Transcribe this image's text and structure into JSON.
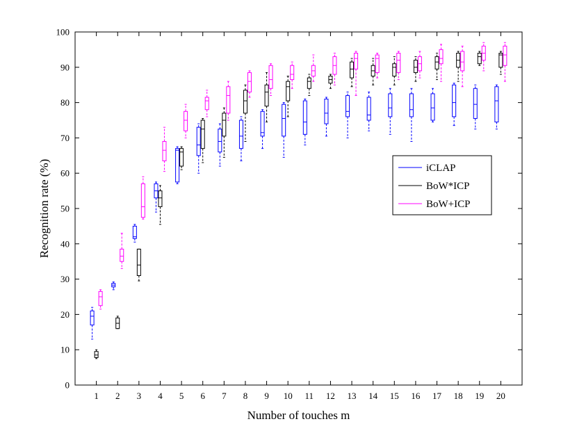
{
  "chart_data": {
    "type": "boxplot",
    "xlabel": "Number of touches m",
    "ylabel": "Recognition rate (%)",
    "ylim": [
      0,
      100
    ],
    "yticks": [
      0,
      10,
      20,
      30,
      40,
      50,
      60,
      70,
      80,
      90,
      100
    ],
    "categories": [
      "1",
      "2",
      "3",
      "4",
      "5",
      "6",
      "7",
      "8",
      "9",
      "10",
      "11",
      "12",
      "13",
      "14",
      "15",
      "16",
      "17",
      "18",
      "19",
      "20"
    ],
    "legend_position": "right-center",
    "grid": false,
    "series": [
      {
        "name": "iCLAP",
        "color": "#0000ff",
        "boxes": [
          {
            "min": 13,
            "q1": 17,
            "median": 19.5,
            "q3": 21,
            "max": 22
          },
          {
            "min": 27,
            "q1": 27.8,
            "median": 28.3,
            "q3": 28.8,
            "max": 29.2
          },
          {
            "min": 40.5,
            "q1": 41.5,
            "median": 42,
            "q3": 45,
            "max": 45.5
          },
          {
            "min": 49,
            "q1": 53,
            "median": 55,
            "q3": 57,
            "max": 57.5
          },
          {
            "min": 57,
            "q1": 57.5,
            "median": 66.5,
            "q3": 67,
            "max": 67.5
          },
          {
            "min": 60,
            "q1": 65,
            "median": 68,
            "q3": 73,
            "max": 74
          },
          {
            "min": 62,
            "q1": 66,
            "median": 69,
            "q3": 72.5,
            "max": 74
          },
          {
            "min": 63.5,
            "q1": 67,
            "median": 70.5,
            "q3": 75,
            "max": 76
          },
          {
            "min": 67,
            "q1": 70.5,
            "median": 71.5,
            "q3": 77.5,
            "max": 78
          },
          {
            "min": 64.5,
            "q1": 70.5,
            "median": 75.5,
            "q3": 79.5,
            "max": 80
          },
          {
            "min": 68,
            "q1": 71,
            "median": 74.5,
            "q3": 80.5,
            "max": 81
          },
          {
            "min": 70.5,
            "q1": 74,
            "median": 77,
            "q3": 81,
            "max": 81.5
          },
          {
            "min": 70,
            "q1": 76,
            "median": 77.5,
            "q3": 82,
            "max": 83
          },
          {
            "min": 72,
            "q1": 75,
            "median": 76.5,
            "q3": 81.5,
            "max": 83
          },
          {
            "min": 71,
            "q1": 76,
            "median": 78.5,
            "q3": 82.5,
            "max": 84
          },
          {
            "min": 69,
            "q1": 76,
            "median": 78,
            "q3": 82.5,
            "max": 84
          },
          {
            "min": 74.5,
            "q1": 75,
            "median": 78.5,
            "q3": 82.5,
            "max": 84
          },
          {
            "min": 73.5,
            "q1": 76,
            "median": 80,
            "q3": 85,
            "max": 85.5
          },
          {
            "min": 72.5,
            "q1": 75.5,
            "median": 79.5,
            "q3": 84,
            "max": 85
          },
          {
            "min": 72.5,
            "q1": 74.5,
            "median": 80.5,
            "q3": 84.5,
            "max": 85
          }
        ]
      },
      {
        "name": "BoW*ICP",
        "color": "#000000",
        "boxes": [
          {
            "min": 7.5,
            "q1": 7.8,
            "median": 8.5,
            "q3": 9.5,
            "max": 10
          },
          {
            "min": 16,
            "q1": 16,
            "median": 17.5,
            "q3": 19,
            "max": 19.5
          },
          {
            "min": 29.5,
            "q1": 31,
            "median": 34,
            "q3": 38.5,
            "max": 38.5
          },
          {
            "min": 45.5,
            "q1": 50.5,
            "median": 53,
            "q3": 55,
            "max": 56.5
          },
          {
            "min": 61,
            "q1": 62,
            "median": 66,
            "q3": 67,
            "max": 67.5
          },
          {
            "min": 63,
            "q1": 67,
            "median": 72.5,
            "q3": 75,
            "max": 75.5
          },
          {
            "min": 64.5,
            "q1": 70.5,
            "median": 75,
            "q3": 77,
            "max": 78.5
          },
          {
            "min": 69,
            "q1": 77,
            "median": 80.5,
            "q3": 83.5,
            "max": 85
          },
          {
            "min": 74.5,
            "q1": 79,
            "median": 83,
            "q3": 85,
            "max": 88.5
          },
          {
            "min": 76,
            "q1": 80.5,
            "median": 84.5,
            "q3": 86,
            "max": 87.5
          },
          {
            "min": 82,
            "q1": 84,
            "median": 86,
            "q3": 87,
            "max": 88
          },
          {
            "min": 84,
            "q1": 85.5,
            "median": 86.5,
            "q3": 87.5,
            "max": 88
          },
          {
            "min": 84.5,
            "q1": 87,
            "median": 89.5,
            "q3": 91.5,
            "max": 92.5
          },
          {
            "min": 85,
            "q1": 87.5,
            "median": 89,
            "q3": 90.5,
            "max": 92.5
          },
          {
            "min": 85,
            "q1": 87.5,
            "median": 90,
            "q3": 91,
            "max": 93
          },
          {
            "min": 86,
            "q1": 88.5,
            "median": 90,
            "q3": 92,
            "max": 93
          },
          {
            "min": 86.5,
            "q1": 89.5,
            "median": 91.5,
            "q3": 93,
            "max": 94
          },
          {
            "min": 86,
            "q1": 90,
            "median": 92,
            "q3": 94,
            "max": 94.5
          },
          {
            "min": 90.5,
            "q1": 91,
            "median": 93,
            "q3": 94,
            "max": 94.5
          },
          {
            "min": 88,
            "q1": 90,
            "median": 93.5,
            "q3": 94,
            "max": 94.5
          }
        ]
      },
      {
        "name": "BoW+ICP",
        "color": "#ff00ff",
        "boxes": [
          {
            "min": 21.5,
            "q1": 22.5,
            "median": 25,
            "q3": 26.5,
            "max": 27
          },
          {
            "min": 33,
            "q1": 35,
            "median": 36.5,
            "q3": 38.5,
            "max": 43
          },
          {
            "min": 47,
            "q1": 47.5,
            "median": 50.5,
            "q3": 57,
            "max": 59
          },
          {
            "min": 60.5,
            "q1": 63.5,
            "median": 66.5,
            "q3": 69,
            "max": 73
          },
          {
            "min": 70,
            "q1": 72,
            "median": 75,
            "q3": 77.5,
            "max": 79.5
          },
          {
            "min": 76,
            "q1": 78,
            "median": 80.5,
            "q3": 81.5,
            "max": 83.5
          },
          {
            "min": 75,
            "q1": 77,
            "median": 82,
            "q3": 84.5,
            "max": 86
          },
          {
            "min": 81.5,
            "q1": 83,
            "median": 86,
            "q3": 88.5,
            "max": 89
          },
          {
            "min": 82,
            "q1": 84,
            "median": 86.5,
            "q3": 90.5,
            "max": 91
          },
          {
            "min": 84,
            "q1": 86.5,
            "median": 88,
            "q3": 90.5,
            "max": 91.5
          },
          {
            "min": 86,
            "q1": 87.5,
            "median": 89,
            "q3": 90.5,
            "max": 93.5
          },
          {
            "min": 85,
            "q1": 88,
            "median": 90.5,
            "q3": 93,
            "max": 94
          },
          {
            "min": 82,
            "q1": 89.5,
            "median": 92.5,
            "q3": 94,
            "max": 94.5
          },
          {
            "min": 87,
            "q1": 88.5,
            "median": 92.5,
            "q3": 93.5,
            "max": 94
          },
          {
            "min": 86.5,
            "q1": 88.5,
            "median": 92,
            "q3": 94,
            "max": 94.5
          },
          {
            "min": 87,
            "q1": 89,
            "median": 91,
            "q3": 93,
            "max": 94.5
          },
          {
            "min": 86,
            "q1": 91,
            "median": 92.5,
            "q3": 95,
            "max": 96.5
          },
          {
            "min": 84.5,
            "q1": 89,
            "median": 91.5,
            "q3": 94.5,
            "max": 96
          },
          {
            "min": 89,
            "q1": 92,
            "median": 94,
            "q3": 96,
            "max": 97
          },
          {
            "min": 86,
            "q1": 90.5,
            "median": 93.5,
            "q3": 96,
            "max": 97
          }
        ]
      }
    ]
  }
}
